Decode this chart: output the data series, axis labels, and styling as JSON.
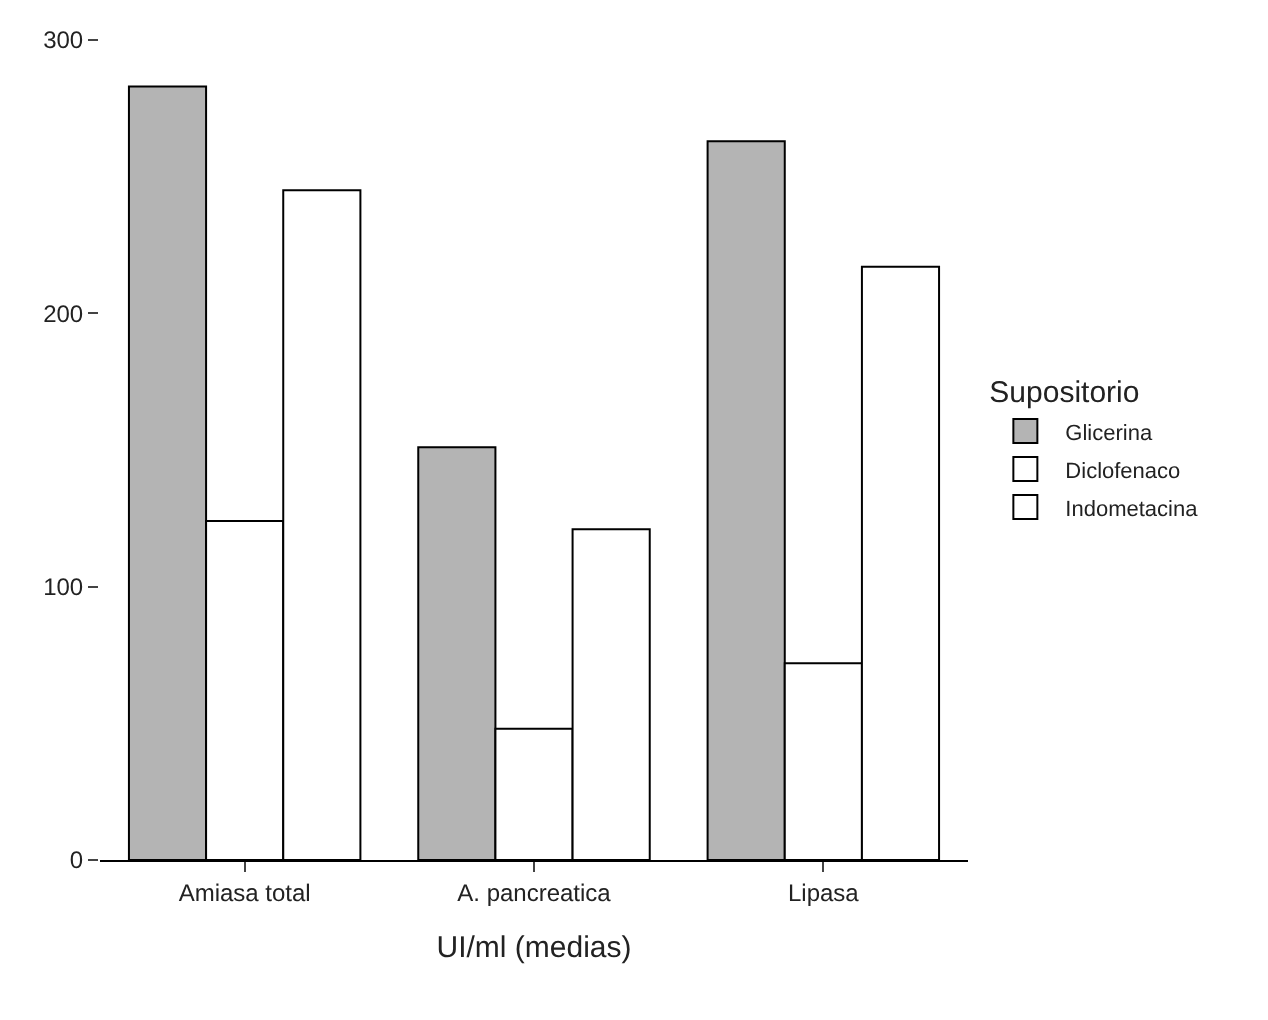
{
  "chart_data": {
    "type": "bar",
    "xlabel": "UI/ml (medias)",
    "legend_title": "Supositorio",
    "categories": [
      "Amiasa total",
      "A. pancreatica",
      "Lipasa"
    ],
    "series": [
      {
        "name": "Glicerina",
        "color": "#b4b4b4",
        "values": [
          283,
          151,
          263
        ]
      },
      {
        "name": "Diclofenaco",
        "color": "#ffffff",
        "values": [
          124,
          48,
          72
        ]
      },
      {
        "name": "Indometacina",
        "color": "#ffffff",
        "values": [
          245,
          121,
          217
        ]
      }
    ],
    "ylim": [
      0,
      300
    ],
    "yticks": [
      0,
      100,
      200,
      300
    ],
    "legend": "right"
  }
}
